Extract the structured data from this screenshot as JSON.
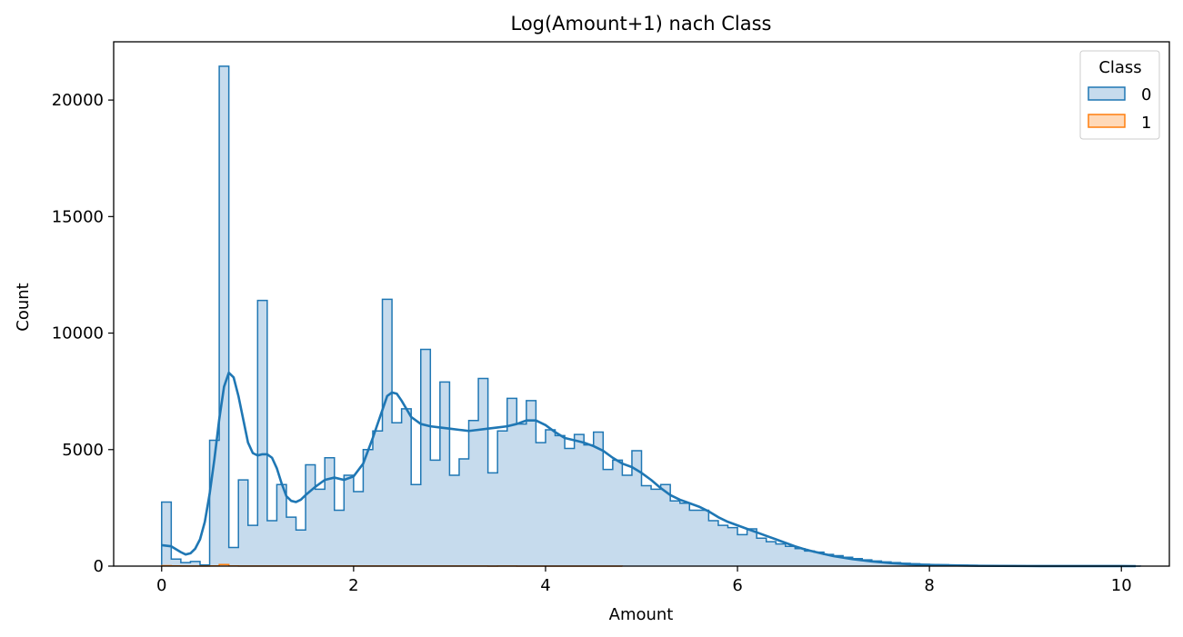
{
  "chart_data": {
    "type": "histogram",
    "title": "Log(Amount+1) nach Class",
    "xlabel": "Amount",
    "ylabel": "Count",
    "xlim": [
      -0.5,
      10.5
    ],
    "ylim": [
      0,
      22500
    ],
    "x_ticks": [
      0,
      2,
      4,
      6,
      8,
      10
    ],
    "y_ticks": [
      0,
      5000,
      10000,
      15000,
      20000
    ],
    "bin_start": 0,
    "bin_width": 0.1,
    "grid": false,
    "legend": {
      "title": "Class",
      "placement": "top-right"
    },
    "series": [
      {
        "name": "0",
        "color": "#1f77b4",
        "fill": "#c6dbed",
        "counts": [
          2750,
          300,
          150,
          200,
          50,
          5400,
          21450,
          800,
          3700,
          1750,
          11400,
          1950,
          3500,
          2100,
          1550,
          4350,
          3300,
          4650,
          2400,
          3900,
          3200,
          5000,
          5800,
          11450,
          6150,
          6750,
          3500,
          9300,
          4550,
          7900,
          3900,
          4600,
          6250,
          8050,
          4000,
          5800,
          7200,
          6100,
          7100,
          5300,
          5850,
          5600,
          5050,
          5650,
          5200,
          5750,
          4150,
          4550,
          3900,
          4950,
          3450,
          3300,
          3500,
          2800,
          2700,
          2400,
          2400,
          1950,
          1750,
          1650,
          1350,
          1600,
          1200,
          1050,
          950,
          850,
          750,
          650,
          600,
          500,
          450,
          380,
          320,
          270,
          220,
          180,
          150,
          120,
          100,
          80,
          70,
          60,
          50,
          40,
          35,
          30,
          25,
          20,
          18,
          15,
          12,
          10,
          8,
          6,
          5,
          4,
          3,
          2,
          2,
          1,
          1,
          1
        ],
        "kde": [
          [
            0,
            900
          ],
          [
            0.1,
            850
          ],
          [
            0.2,
            600
          ],
          [
            0.25,
            500
          ],
          [
            0.3,
            550
          ],
          [
            0.35,
            750
          ],
          [
            0.4,
            1150
          ],
          [
            0.45,
            1900
          ],
          [
            0.5,
            3100
          ],
          [
            0.55,
            4600
          ],
          [
            0.6,
            6300
          ],
          [
            0.65,
            7700
          ],
          [
            0.7,
            8300
          ],
          [
            0.75,
            8100
          ],
          [
            0.8,
            7300
          ],
          [
            0.85,
            6300
          ],
          [
            0.9,
            5300
          ],
          [
            0.95,
            4850
          ],
          [
            1.0,
            4750
          ],
          [
            1.05,
            4800
          ],
          [
            1.1,
            4800
          ],
          [
            1.15,
            4650
          ],
          [
            1.2,
            4200
          ],
          [
            1.25,
            3550
          ],
          [
            1.3,
            3000
          ],
          [
            1.35,
            2800
          ],
          [
            1.4,
            2750
          ],
          [
            1.45,
            2850
          ],
          [
            1.5,
            3050
          ],
          [
            1.6,
            3400
          ],
          [
            1.7,
            3700
          ],
          [
            1.8,
            3800
          ],
          [
            1.9,
            3700
          ],
          [
            2.0,
            3850
          ],
          [
            2.1,
            4400
          ],
          [
            2.2,
            5500
          ],
          [
            2.3,
            6700
          ],
          [
            2.35,
            7300
          ],
          [
            2.4,
            7450
          ],
          [
            2.45,
            7400
          ],
          [
            2.5,
            7100
          ],
          [
            2.6,
            6400
          ],
          [
            2.7,
            6100
          ],
          [
            2.8,
            6000
          ],
          [
            2.9,
            5950
          ],
          [
            3.0,
            5900
          ],
          [
            3.1,
            5850
          ],
          [
            3.2,
            5800
          ],
          [
            3.3,
            5850
          ],
          [
            3.4,
            5900
          ],
          [
            3.5,
            5950
          ],
          [
            3.6,
            6000
          ],
          [
            3.7,
            6100
          ],
          [
            3.8,
            6250
          ],
          [
            3.9,
            6250
          ],
          [
            4.0,
            6050
          ],
          [
            4.1,
            5750
          ],
          [
            4.2,
            5500
          ],
          [
            4.3,
            5400
          ],
          [
            4.4,
            5300
          ],
          [
            4.5,
            5150
          ],
          [
            4.6,
            4950
          ],
          [
            4.7,
            4650
          ],
          [
            4.8,
            4400
          ],
          [
            4.9,
            4250
          ],
          [
            5.0,
            4000
          ],
          [
            5.1,
            3700
          ],
          [
            5.2,
            3350
          ],
          [
            5.3,
            3050
          ],
          [
            5.4,
            2850
          ],
          [
            5.5,
            2700
          ],
          [
            5.6,
            2550
          ],
          [
            5.7,
            2350
          ],
          [
            5.8,
            2100
          ],
          [
            5.9,
            1900
          ],
          [
            6.0,
            1750
          ],
          [
            6.1,
            1600
          ],
          [
            6.2,
            1450
          ],
          [
            6.3,
            1300
          ],
          [
            6.4,
            1150
          ],
          [
            6.5,
            1000
          ],
          [
            6.6,
            850
          ],
          [
            6.7,
            720
          ],
          [
            6.8,
            620
          ],
          [
            6.9,
            520
          ],
          [
            7.0,
            430
          ],
          [
            7.2,
            300
          ],
          [
            7.4,
            200
          ],
          [
            7.6,
            130
          ],
          [
            7.8,
            80
          ],
          [
            8.0,
            50
          ],
          [
            8.5,
            15
          ],
          [
            9.0,
            5
          ],
          [
            9.5,
            2
          ],
          [
            10.0,
            1
          ],
          [
            10.15,
            0
          ]
        ]
      },
      {
        "name": "1",
        "color": "#ff7f0e",
        "fill": "#ffd9b8",
        "counts": [
          20,
          8,
          5,
          3,
          3,
          10,
          70,
          10,
          5,
          4,
          6,
          5,
          4,
          3,
          3,
          5,
          4,
          4,
          3,
          3,
          3,
          4,
          4,
          6,
          4,
          4,
          3,
          4,
          3,
          3,
          3,
          3,
          3,
          3,
          2,
          3,
          3,
          2,
          2,
          2,
          2,
          2,
          2,
          2,
          2,
          2,
          1,
          1
        ]
      }
    ]
  }
}
